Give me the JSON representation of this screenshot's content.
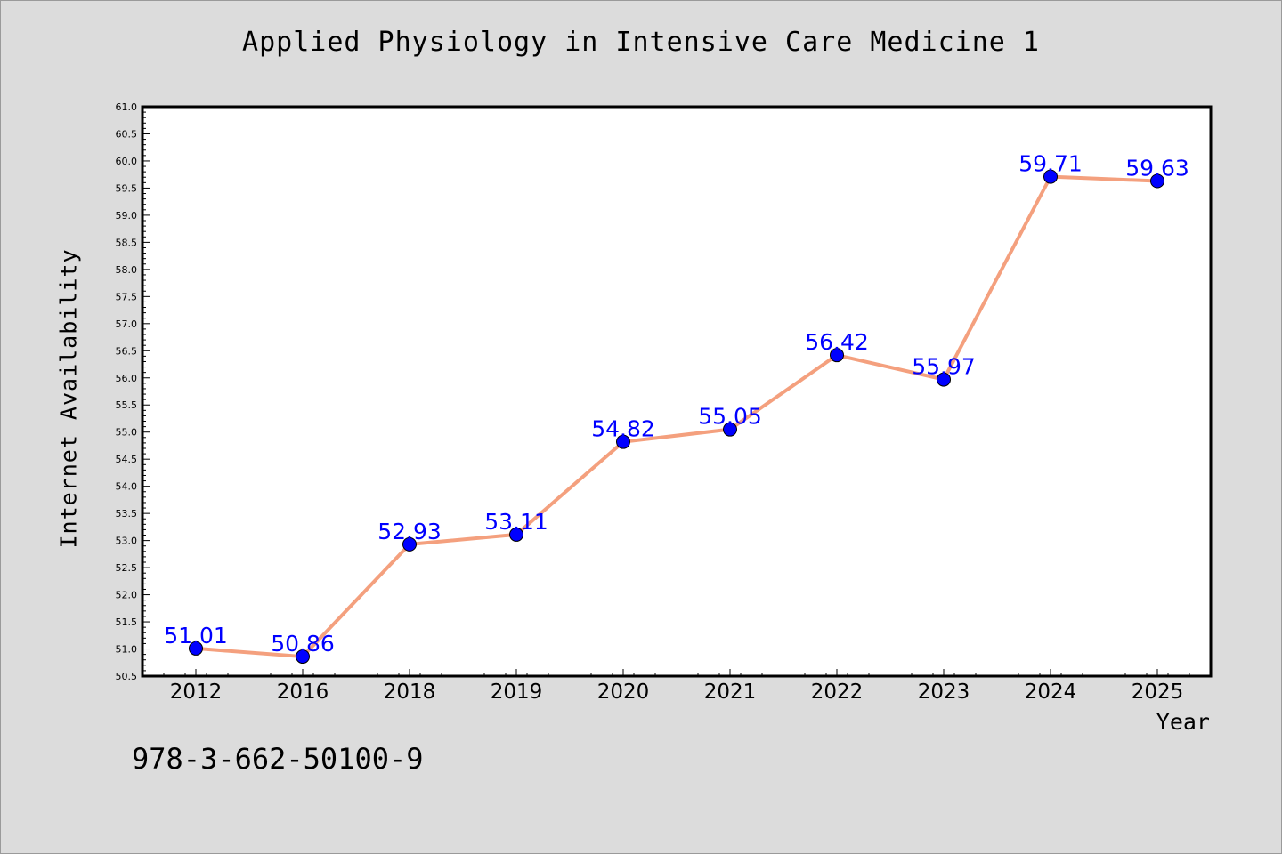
{
  "isbn": "978-3-662-50100-9",
  "chart_data": {
    "type": "line",
    "title": "Applied Physiology in Intensive Care Medicine 1",
    "xlabel": "Year",
    "ylabel": "Internet Availability",
    "categories": [
      "2012",
      "2016",
      "2018",
      "2019",
      "2020",
      "2021",
      "2022",
      "2023",
      "2024",
      "2025"
    ],
    "series": [
      {
        "values": [
          51.01,
          50.86,
          52.93,
          53.11,
          54.82,
          55.05,
          56.42,
          55.97,
          59.71,
          59.63
        ],
        "data_labels": [
          "51.01",
          "50.86",
          "52.93",
          "53.11",
          "54.82",
          "55.05",
          "56.42",
          "55.97",
          "59.71",
          "59.63"
        ],
        "line_color": "#f4a07e",
        "marker_color": "#0000ff"
      }
    ],
    "ylim": [
      50.5,
      61.0
    ],
    "ytick_step": 0.5,
    "yticks": [
      "50.5",
      "51.0",
      "51.5",
      "52.0",
      "52.5",
      "53.0",
      "53.5",
      "54.0",
      "54.5",
      "55.0",
      "55.5",
      "56.0",
      "56.5",
      "57.0",
      "57.5",
      "58.0",
      "58.5",
      "59.0",
      "59.5",
      "60.0",
      "60.5",
      "61.0"
    ],
    "grid": false,
    "legend": "none",
    "plot_background": "#ffffff",
    "figure_background": "#dcdcdc"
  }
}
